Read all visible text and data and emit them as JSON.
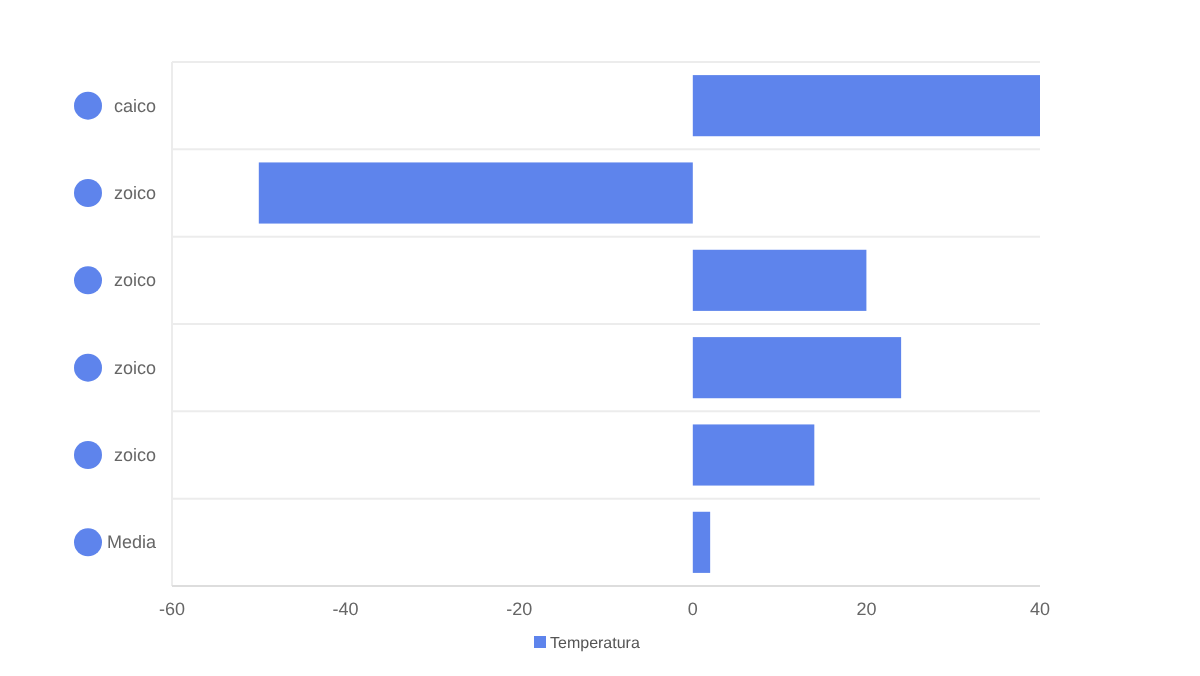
{
  "chart_data": {
    "type": "bar",
    "orientation": "horizontal",
    "categories": [
      "caico",
      "zoico",
      "zoico",
      "zoico",
      "zoico",
      "Media"
    ],
    "series": [
      {
        "name": "Temperatura",
        "color": "#5e84ec",
        "values": [
          40,
          -50,
          20,
          24,
          14,
          2
        ]
      }
    ],
    "xlim": [
      -60,
      40
    ],
    "xticks": [
      -60,
      -40,
      -20,
      0,
      20,
      40
    ],
    "grid": "y",
    "legend": "bottom"
  }
}
